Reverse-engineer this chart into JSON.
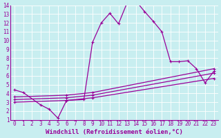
{
  "xlabel": "Windchill (Refroidissement éolien,°C)",
  "xlim": [
    -0.5,
    23.5
  ],
  "ylim": [
    1,
    14
  ],
  "xticks": [
    0,
    1,
    2,
    3,
    4,
    5,
    6,
    7,
    8,
    9,
    10,
    11,
    12,
    13,
    14,
    15,
    16,
    17,
    18,
    19,
    20,
    21,
    22,
    23
  ],
  "yticks": [
    1,
    2,
    3,
    4,
    5,
    6,
    7,
    8,
    9,
    10,
    11,
    12,
    13,
    14
  ],
  "background_color": "#c8eef0",
  "grid_color": "#ffffff",
  "line_color": "#990099",
  "line1_x": [
    0,
    1,
    3,
    4,
    5,
    6,
    8,
    9,
    10,
    11,
    12,
    13,
    14,
    15,
    16,
    17,
    18,
    19,
    20,
    21,
    22,
    23
  ],
  "line1_y": [
    4.4,
    4.1,
    2.7,
    2.2,
    1.2,
    3.2,
    3.3,
    9.8,
    12.0,
    13.1,
    11.9,
    14.3,
    14.5,
    13.3,
    12.2,
    11.0,
    7.6,
    7.6,
    7.7,
    6.8,
    5.2,
    6.5
  ],
  "line2_x": [
    0,
    6,
    9,
    23
  ],
  "line2_y": [
    3.6,
    3.8,
    4.1,
    6.8
  ],
  "line3_x": [
    0,
    6,
    9,
    23
  ],
  "line3_y": [
    3.3,
    3.5,
    3.8,
    6.3
  ],
  "line4_x": [
    0,
    6,
    9,
    23
  ],
  "line4_y": [
    3.0,
    3.2,
    3.5,
    5.7
  ],
  "font_size": 6.5,
  "tick_fontsize": 5.5
}
